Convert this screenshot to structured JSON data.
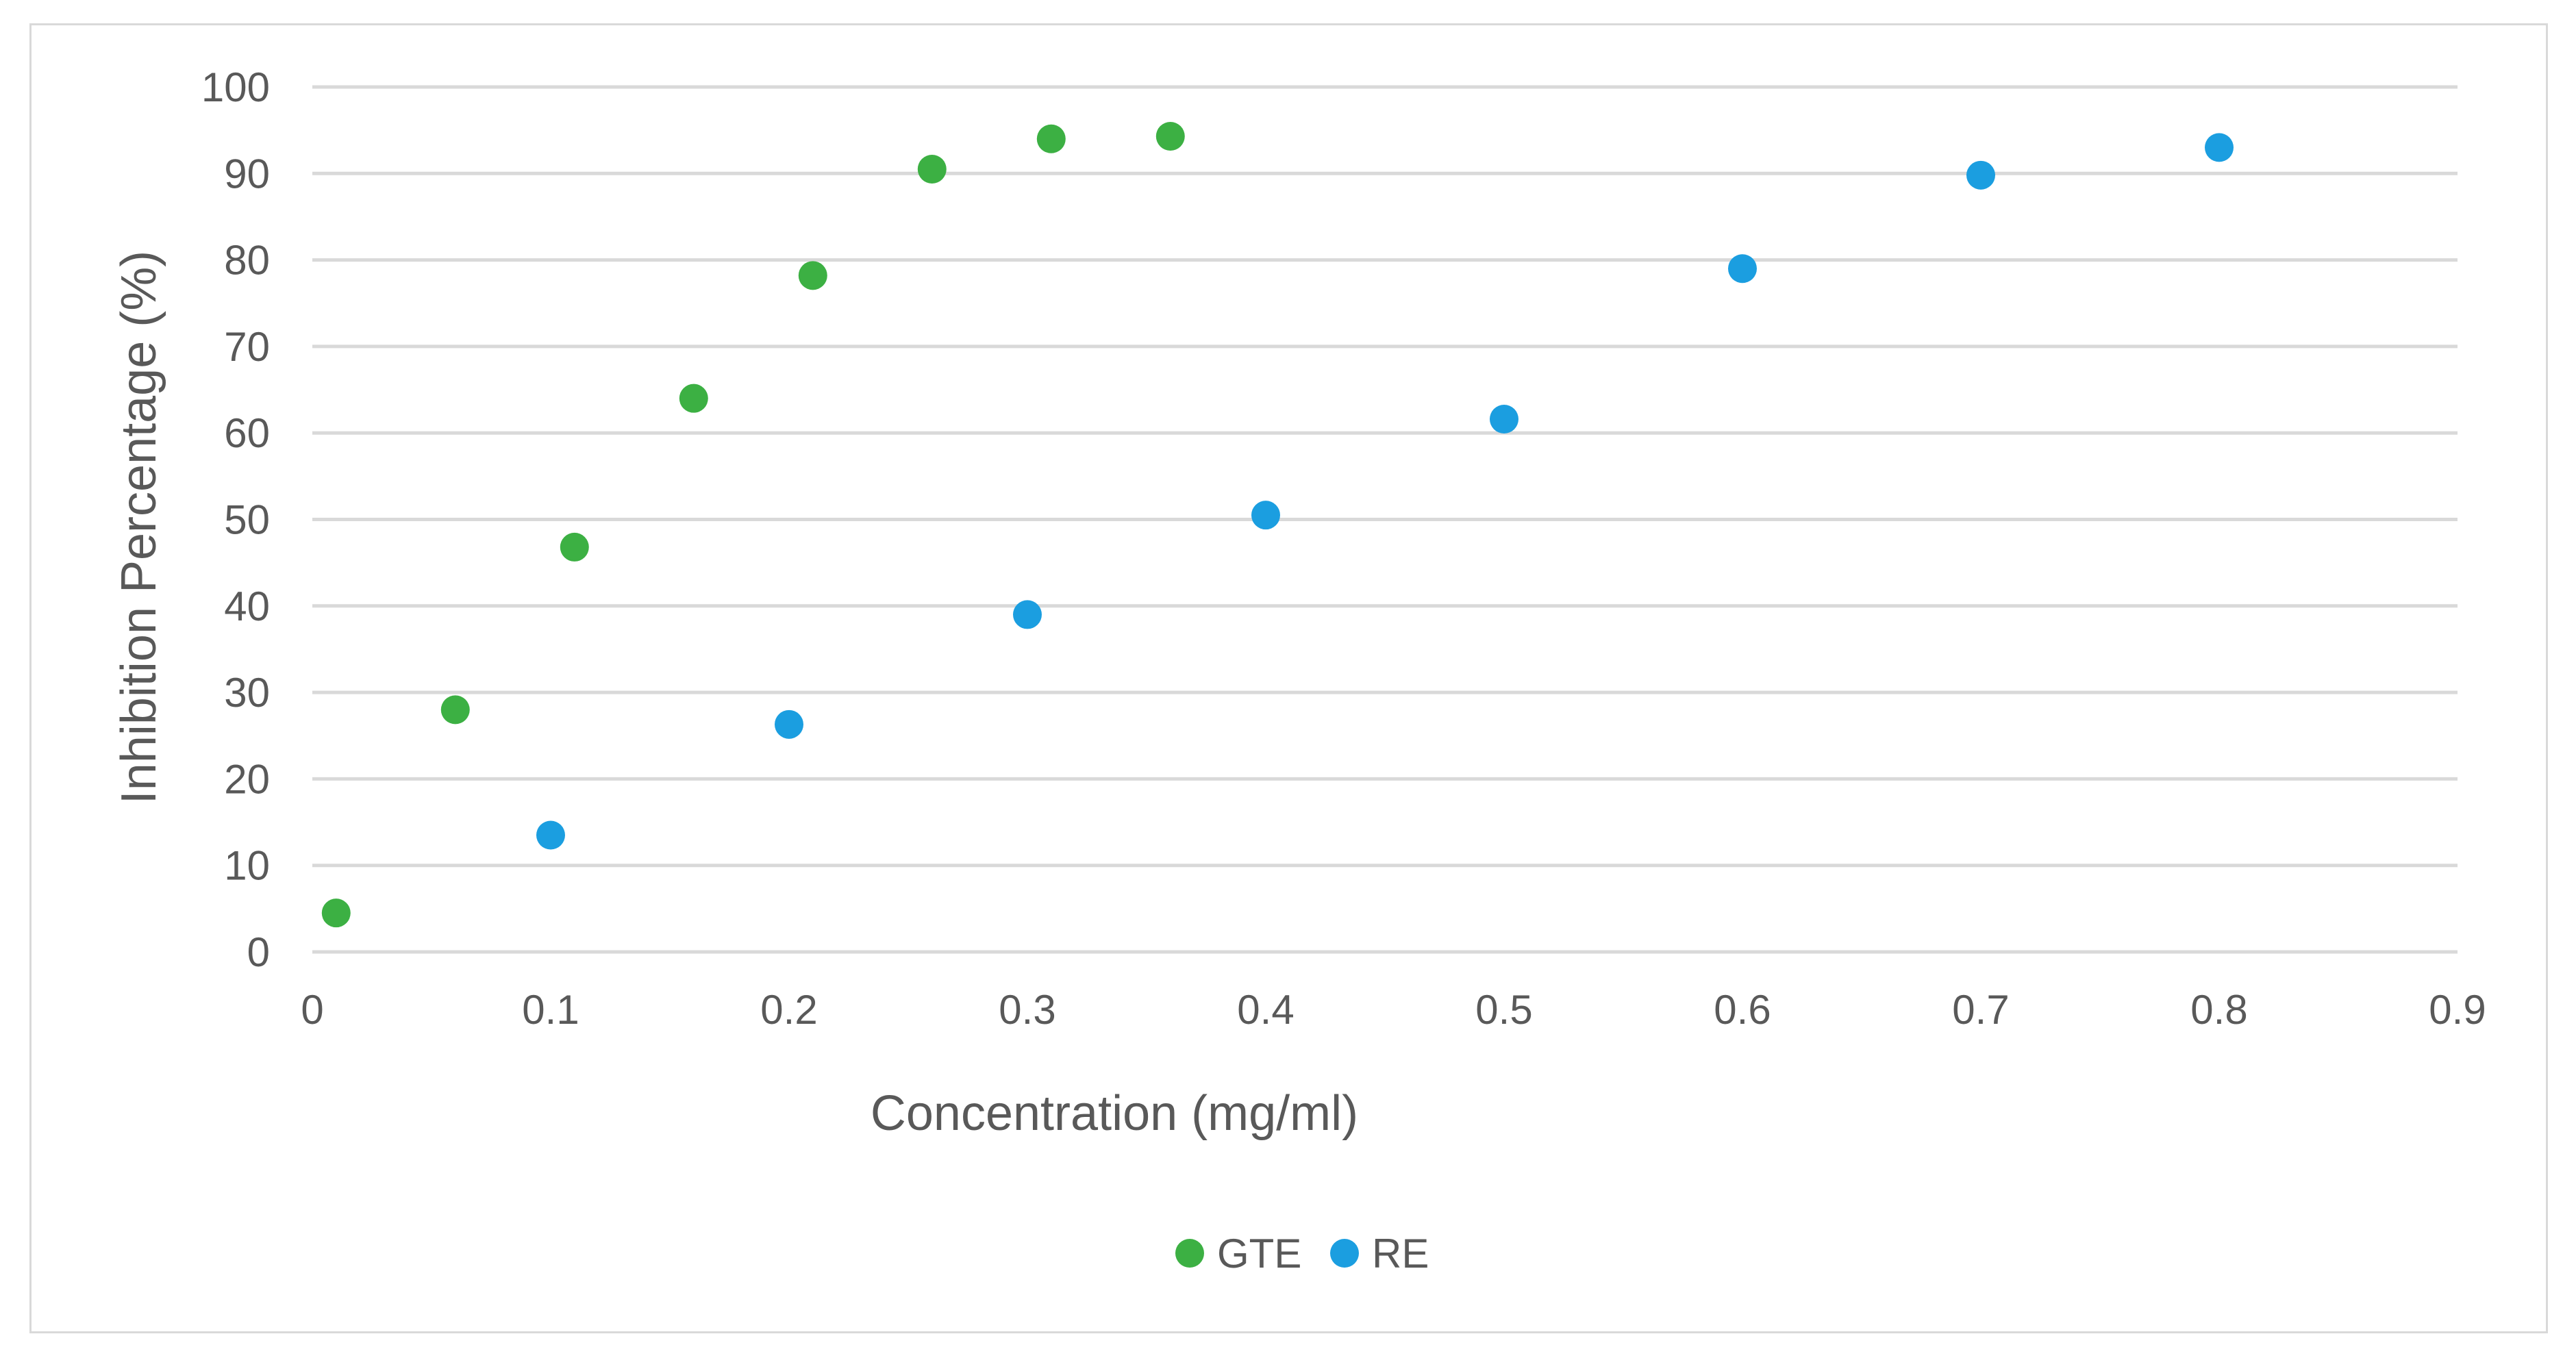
{
  "chart_data": {
    "type": "scatter",
    "title": "",
    "xlabel": "Concentration (mg/ml)",
    "ylabel": "Inhibition Percentage (%)",
    "xlim": [
      0,
      0.9
    ],
    "ylim": [
      0,
      100
    ],
    "xticks": [
      "0",
      "0.1",
      "0.2",
      "0.3",
      "0.4",
      "0.5",
      "0.6",
      "0.7",
      "0.8",
      "0.9"
    ],
    "yticks": [
      "0",
      "10",
      "20",
      "30",
      "40",
      "50",
      "60",
      "70",
      "80",
      "90",
      "100"
    ],
    "grid": true,
    "legend_position": "bottom-center",
    "series": [
      {
        "name": "GTE",
        "color": "#3cb043",
        "x": [
          0.01,
          0.06,
          0.11,
          0.16,
          0.21,
          0.26,
          0.31,
          0.36
        ],
        "y": [
          4.5,
          28.0,
          46.8,
          64.0,
          78.2,
          90.5,
          94.0,
          94.3
        ]
      },
      {
        "name": "RE",
        "color": "#1b9ee0",
        "x": [
          0.1,
          0.2,
          0.3,
          0.4,
          0.5,
          0.6,
          0.7,
          0.8
        ],
        "y": [
          13.5,
          26.3,
          39.0,
          50.5,
          61.6,
          79.0,
          89.8,
          93.0
        ]
      }
    ]
  }
}
